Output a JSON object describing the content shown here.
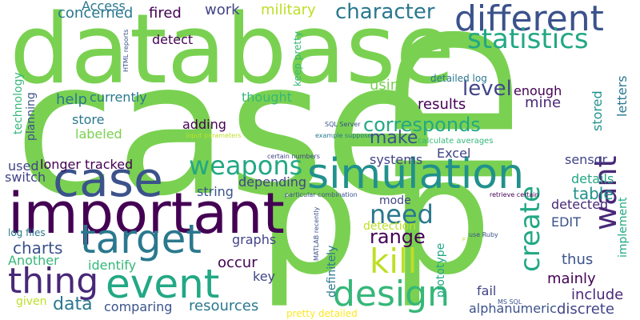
{
  "words": [
    {
      "text": "case",
      "color": "#7ad151",
      "rot": 0
    },
    {
      "text": "database",
      "color": "#7ad151",
      "rot": 0
    },
    {
      "text": "ID",
      "color": "#7ad151",
      "rot": 270
    },
    {
      "text": "p",
      "color": "#7ad151",
      "rot": 0
    },
    {
      "text": "p",
      "color": "#7ad151",
      "rot": 0
    },
    {
      "text": "important",
      "color": "#440154",
      "rot": 0
    },
    {
      "text": "simulation",
      "color": "#21918c",
      "rot": 0
    },
    {
      "text": "case",
      "color": "#3b528b",
      "rot": 0
    },
    {
      "text": "different",
      "color": "#3b528b",
      "rot": 0
    },
    {
      "text": "statistics",
      "color": "#22a884",
      "rot": 0
    },
    {
      "text": "target",
      "color": "#2a788e",
      "rot": 0
    },
    {
      "text": "event",
      "color": "#22a884",
      "rot": 0
    },
    {
      "text": "thing",
      "color": "#482878",
      "rot": 0
    },
    {
      "text": "design",
      "color": "#35b779",
      "rot": 0
    },
    {
      "text": "kill",
      "color": "#bddf26",
      "rot": 0
    },
    {
      "text": "want",
      "color": "#482878",
      "rot": 270
    },
    {
      "text": "create",
      "color": "#22a884",
      "rot": 270
    },
    {
      "text": "weapons",
      "color": "#22a884",
      "rot": 0
    },
    {
      "text": "need",
      "color": "#2a788e",
      "rot": 0
    },
    {
      "text": "character",
      "color": "#2a788e",
      "rot": 0
    },
    {
      "text": "corresponds",
      "color": "#22a884",
      "rot": 0
    },
    {
      "text": "level",
      "color": "#414487",
      "rot": 0
    },
    {
      "text": "range",
      "color": "#440154",
      "rot": 0
    },
    {
      "text": "make",
      "color": "#3b528b",
      "rot": 0
    },
    {
      "text": "charts",
      "color": "#3b528b",
      "rot": 0
    },
    {
      "text": "data",
      "color": "#2a788e",
      "rot": 0
    },
    {
      "text": "table",
      "color": "#21918c",
      "rot": 0
    },
    {
      "text": "military",
      "color": "#bddf26",
      "rot": 0
    },
    {
      "text": "concerned",
      "color": "#2a788e",
      "rot": 0
    },
    {
      "text": "fired",
      "color": "#440154",
      "rot": 0
    },
    {
      "text": "work",
      "color": "#414487",
      "rot": 0
    },
    {
      "text": "results",
      "color": "#440154",
      "rot": 0
    },
    {
      "text": "mine",
      "color": "#482878",
      "rot": 0
    },
    {
      "text": "help",
      "color": "#2a788e",
      "rot": 0
    },
    {
      "text": "currently",
      "color": "#2a788e",
      "rot": 0
    },
    {
      "text": "store",
      "color": "#2a788e",
      "rot": 0
    },
    {
      "text": "labeled",
      "color": "#7ad151",
      "rot": 0
    },
    {
      "text": "adding",
      "color": "#440154",
      "rot": 0
    },
    {
      "text": "using",
      "color": "#7ad151",
      "rot": 0
    },
    {
      "text": "thought",
      "color": "#35b779",
      "rot": 0
    },
    {
      "text": "systems",
      "color": "#414487",
      "rot": 0
    },
    {
      "text": "Excel",
      "color": "#414487",
      "rot": 0
    },
    {
      "text": "sensor",
      "color": "#414487",
      "rot": 0
    },
    {
      "text": "details",
      "color": "#22a884",
      "rot": 0
    },
    {
      "text": "detected",
      "color": "#482878",
      "rot": 0
    },
    {
      "text": "EDIT",
      "color": "#3b528b",
      "rot": 0
    },
    {
      "text": "thus",
      "color": "#3b528b",
      "rot": 0
    },
    {
      "text": "mainly",
      "color": "#440154",
      "rot": 0
    },
    {
      "text": "include",
      "color": "#482878",
      "rot": 0
    },
    {
      "text": "discrete",
      "color": "#414487",
      "rot": 0
    },
    {
      "text": "fail",
      "color": "#414487",
      "rot": 0
    },
    {
      "text": "alphanumeric",
      "color": "#3b528b",
      "rot": 0
    },
    {
      "text": "resources",
      "color": "#2a788e",
      "rot": 0
    },
    {
      "text": "comparing",
      "color": "#3b528b",
      "rot": 0
    },
    {
      "text": "Another",
      "color": "#35b779",
      "rot": 0
    },
    {
      "text": "identify",
      "color": "#35b779",
      "rot": 0
    },
    {
      "text": "occur",
      "color": "#440154",
      "rot": 0
    },
    {
      "text": "key",
      "color": "#414487",
      "rot": 0
    },
    {
      "text": "graphs",
      "color": "#414487",
      "rot": 0
    },
    {
      "text": "depending",
      "color": "#414487",
      "rot": 0
    },
    {
      "text": "string",
      "color": "#3b528b",
      "rot": 0
    },
    {
      "text": "longer tracked",
      "color": "#440154",
      "rot": 0
    },
    {
      "text": "switch",
      "color": "#414487",
      "rot": 0
    },
    {
      "text": "used",
      "color": "#414487",
      "rot": 0
    },
    {
      "text": "given",
      "color": "#bddf26",
      "rot": 0
    },
    {
      "text": "log files",
      "color": "#2a788e",
      "rot": 0
    },
    {
      "text": "mode",
      "color": "#414487",
      "rot": 0
    },
    {
      "text": "detection",
      "color": "#bddf26",
      "rot": 0
    },
    {
      "text": "definitely",
      "color": "#2a788e",
      "rot": 270
    },
    {
      "text": "prototype",
      "color": "#22a884",
      "rot": 270
    },
    {
      "text": "pretty detailed",
      "color": "#fde725",
      "rot": 0
    },
    {
      "text": "Access",
      "color": "#2a788e",
      "rot": 0
    },
    {
      "text": "detect",
      "color": "#440154",
      "rot": 0
    },
    {
      "text": "detailed log",
      "color": "#2a788e",
      "rot": 0
    },
    {
      "text": "enough",
      "color": "#440154",
      "rot": 0
    },
    {
      "text": "stored",
      "color": "#21918c",
      "rot": 270
    },
    {
      "text": "letters",
      "color": "#2a788e",
      "rot": 270
    },
    {
      "text": "technology",
      "color": "#35b779",
      "rot": 270
    },
    {
      "text": "planning",
      "color": "#3b528b",
      "rot": 270
    },
    {
      "text": "keep pretty",
      "color": "#35b779",
      "rot": 270
    },
    {
      "text": "implement",
      "color": "#22a884",
      "rot": 270
    },
    {
      "text": "HTML reports",
      "color": "#3b528b",
      "rot": 270
    },
    {
      "text": "SQL Server",
      "color": "#3b528b",
      "rot": 0
    },
    {
      "text": "example suppose",
      "color": "#2a788e",
      "rot": 0
    },
    {
      "text": "input parameters",
      "color": "#bddf26",
      "rot": 0
    },
    {
      "text": "calculate averages",
      "color": "#35b779",
      "rot": 0
    },
    {
      "text": "certain numbers",
      "color": "#414487",
      "rot": 0
    },
    {
      "text": "particular combination",
      "color": "#3b528b",
      "rot": 0
    },
    {
      "text": "retrieve certain",
      "color": "#440154",
      "rot": 0
    },
    {
      "text": "use Ruby",
      "color": "#3b528b",
      "rot": 0
    },
    {
      "text": "MATLAB recently",
      "color": "#3b528b",
      "rot": 270
    },
    {
      "text": "MS SQL",
      "color": "#3b528b",
      "rot": 0
    },
    {
      "text": "p",
      "color": "#bddf26",
      "rot": 0
    }
  ]
}
